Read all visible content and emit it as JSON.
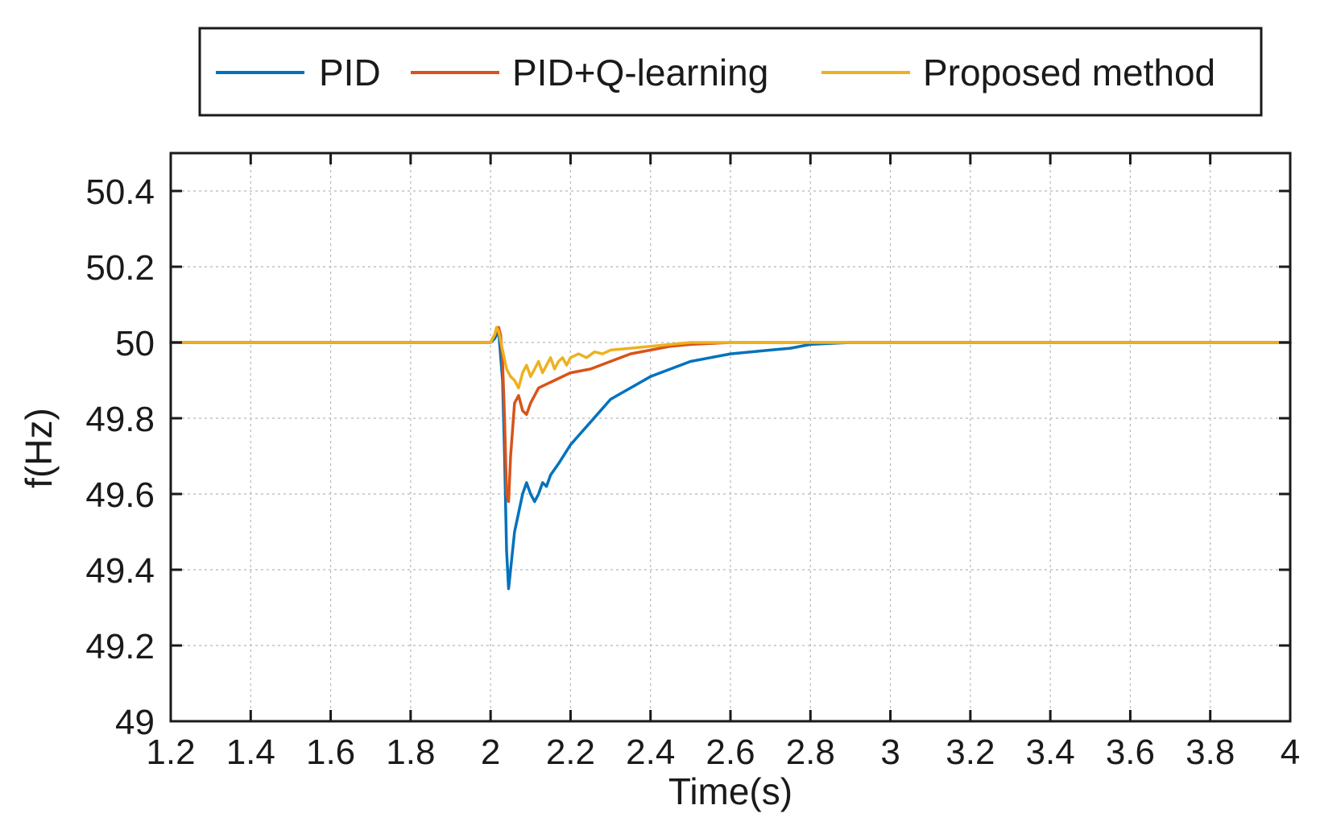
{
  "chart_data": {
    "type": "line",
    "xlabel": "Time(s)",
    "ylabel": "f(Hz)",
    "xlim": [
      1.2,
      4
    ],
    "ylim": [
      49,
      50.5
    ],
    "xticks": [
      1.2,
      1.4,
      1.6,
      1.8,
      2,
      2.2,
      2.4,
      2.6,
      2.8,
      3,
      3.2,
      3.4,
      3.6,
      3.8,
      4
    ],
    "xtick_labels": [
      "1.2",
      "1.4",
      "1.6",
      "1.8",
      "2",
      "2.2",
      "2.4",
      "2.6",
      "2.8",
      "3",
      "3.2",
      "3.4",
      "3.6",
      "3.8",
      "4"
    ],
    "yticks": [
      49,
      49.2,
      49.4,
      49.6,
      49.8,
      50,
      50.2,
      50.4
    ],
    "ytick_labels": [
      "49",
      "49.2",
      "49.4",
      "49.6",
      "49.8",
      "50",
      "50.2",
      "50.4"
    ],
    "grid": true,
    "legend_position": "top",
    "series": [
      {
        "name": "PID",
        "color": "#0072BD",
        "x": [
          1.2,
          1.5,
          1.8,
          2.0,
          2.01,
          2.02,
          2.03,
          2.035,
          2.04,
          2.045,
          2.05,
          2.06,
          2.07,
          2.08,
          2.09,
          2.1,
          2.11,
          2.12,
          2.13,
          2.14,
          2.15,
          2.17,
          2.2,
          2.25,
          2.3,
          2.35,
          2.4,
          2.45,
          2.5,
          2.55,
          2.6,
          2.65,
          2.7,
          2.75,
          2.8,
          2.9,
          3.0,
          3.3,
          3.6,
          4.0
        ],
        "y": [
          50.0,
          50.0,
          50.0,
          50.0,
          50.01,
          50.03,
          49.9,
          49.7,
          49.45,
          49.35,
          49.4,
          49.5,
          49.55,
          49.6,
          49.63,
          49.6,
          49.58,
          49.6,
          49.63,
          49.62,
          49.65,
          49.68,
          49.73,
          49.79,
          49.85,
          49.88,
          49.91,
          49.93,
          49.95,
          49.96,
          49.97,
          49.975,
          49.98,
          49.985,
          49.995,
          50.0,
          50.0,
          50.0,
          50.0,
          50.0
        ]
      },
      {
        "name": "PID+Q-learning",
        "color": "#D95319",
        "x": [
          1.2,
          1.5,
          1.8,
          2.0,
          2.01,
          2.02,
          2.025,
          2.03,
          2.035,
          2.04,
          2.045,
          2.05,
          2.06,
          2.07,
          2.08,
          2.09,
          2.1,
          2.11,
          2.12,
          2.14,
          2.16,
          2.2,
          2.25,
          2.3,
          2.35,
          2.4,
          2.45,
          2.5,
          2.6,
          2.7,
          2.8,
          3.0,
          3.5,
          4.0
        ],
        "y": [
          50.0,
          50.0,
          50.0,
          50.0,
          50.02,
          50.04,
          50.02,
          49.95,
          49.8,
          49.6,
          49.58,
          49.7,
          49.84,
          49.86,
          49.82,
          49.81,
          49.84,
          49.86,
          49.88,
          49.89,
          49.9,
          49.92,
          49.93,
          49.95,
          49.97,
          49.98,
          49.99,
          49.995,
          50.0,
          50.0,
          50.0,
          50.0,
          50.0,
          50.0
        ]
      },
      {
        "name": "Proposed method",
        "color": "#EDB120",
        "x": [
          1.2,
          1.5,
          1.8,
          2.0,
          2.01,
          2.015,
          2.02,
          2.03,
          2.04,
          2.05,
          2.06,
          2.07,
          2.08,
          2.09,
          2.1,
          2.11,
          2.12,
          2.13,
          2.14,
          2.15,
          2.16,
          2.17,
          2.18,
          2.19,
          2.2,
          2.22,
          2.24,
          2.26,
          2.28,
          2.3,
          2.35,
          2.4,
          2.5,
          2.6,
          2.8,
          3.0,
          3.5,
          4.0
        ],
        "y": [
          50.0,
          50.0,
          50.0,
          50.0,
          50.02,
          50.04,
          50.03,
          49.98,
          49.93,
          49.91,
          49.9,
          49.88,
          49.92,
          49.94,
          49.91,
          49.93,
          49.95,
          49.92,
          49.94,
          49.96,
          49.93,
          49.95,
          49.96,
          49.94,
          49.96,
          49.97,
          49.96,
          49.975,
          49.97,
          49.98,
          49.985,
          49.99,
          50.0,
          50.0,
          50.0,
          50.0,
          50.0,
          50.0
        ]
      }
    ]
  }
}
